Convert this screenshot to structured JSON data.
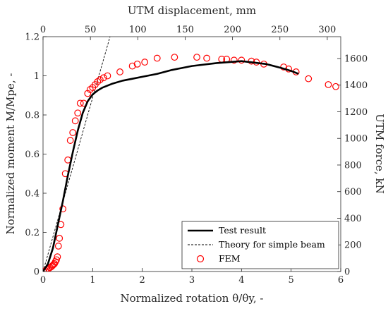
{
  "chart_data": {
    "type": "line",
    "title": "",
    "xlabel": "Normalized rotation θ/θy, -",
    "ylabel": "Normalized moment M/Mpe, -",
    "x2label": "UTM displacement, mm",
    "y2label": "UTM force, kN",
    "xlim": [
      0,
      6
    ],
    "ylim": [
      0,
      1.2
    ],
    "x2lim": [
      0,
      314.2
    ],
    "y2lim": [
      0,
      1764
    ],
    "xticks": [
      "0",
      "1",
      "2",
      "3",
      "4",
      "5",
      "6"
    ],
    "yticks": [
      "0",
      "0.2",
      "0.4",
      "0.6",
      "0.8",
      "1",
      "1.2"
    ],
    "x2ticks": [
      "0",
      "50",
      "100",
      "150",
      "200",
      "250",
      "300"
    ],
    "y2ticks": [
      "0",
      "200",
      "400",
      "600",
      "800",
      "1000",
      "1200",
      "1400",
      "1600"
    ],
    "grid": false,
    "legend_position": "bottom-right",
    "series": [
      {
        "name": "Test result",
        "style": "solid-black",
        "x": [
          0,
          0.1,
          0.2,
          0.3,
          0.4,
          0.5,
          0.6,
          0.7,
          0.8,
          0.9,
          1.0,
          1.1,
          1.2,
          1.4,
          1.6,
          1.8,
          2.0,
          2.3,
          2.6,
          3.0,
          3.5,
          4.0,
          4.5,
          4.8,
          5.0,
          5.15
        ],
        "y": [
          0,
          0.04,
          0.12,
          0.24,
          0.36,
          0.49,
          0.61,
          0.72,
          0.81,
          0.87,
          0.905,
          0.925,
          0.94,
          0.96,
          0.975,
          0.985,
          0.995,
          1.01,
          1.03,
          1.05,
          1.065,
          1.075,
          1.06,
          1.04,
          1.025,
          1.01
        ]
      },
      {
        "name": "Theory for simple beam",
        "style": "dashed-black",
        "x": [
          0,
          1.35
        ],
        "y": [
          0,
          1.2
        ]
      },
      {
        "name": "FEM",
        "style": "open-circle-red",
        "x": [
          0.02,
          0.05,
          0.08,
          0.11,
          0.14,
          0.17,
          0.19,
          0.21,
          0.23,
          0.25,
          0.27,
          0.29,
          0.31,
          0.33,
          0.36,
          0.4,
          0.45,
          0.5,
          0.55,
          0.6,
          0.65,
          0.7,
          0.75,
          0.82,
          0.9,
          0.95,
          1.0,
          1.05,
          1.1,
          1.15,
          1.22,
          1.3,
          1.55,
          1.8,
          1.9,
          2.05,
          2.3,
          2.65,
          3.1,
          3.3,
          3.6,
          3.7,
          3.85,
          4.0,
          4.2,
          4.3,
          4.45,
          4.85,
          4.95,
          5.1,
          5.35,
          5.75,
          5.9
        ],
        "y": [
          0.0,
          0.005,
          0.01,
          0.015,
          0.02,
          0.025,
          0.03,
          0.035,
          0.04,
          0.05,
          0.06,
          0.075,
          0.13,
          0.17,
          0.24,
          0.32,
          0.5,
          0.57,
          0.67,
          0.71,
          0.77,
          0.81,
          0.86,
          0.86,
          0.91,
          0.93,
          0.94,
          0.955,
          0.97,
          0.98,
          0.99,
          1.0,
          1.02,
          1.05,
          1.06,
          1.07,
          1.09,
          1.095,
          1.095,
          1.09,
          1.085,
          1.085,
          1.08,
          1.08,
          1.075,
          1.07,
          1.06,
          1.045,
          1.035,
          1.02,
          0.985,
          0.955,
          0.945
        ]
      }
    ],
    "colors": {
      "test": "#000000",
      "theory": "#000000",
      "fem": "#ff0000",
      "axis": "#262626"
    }
  }
}
